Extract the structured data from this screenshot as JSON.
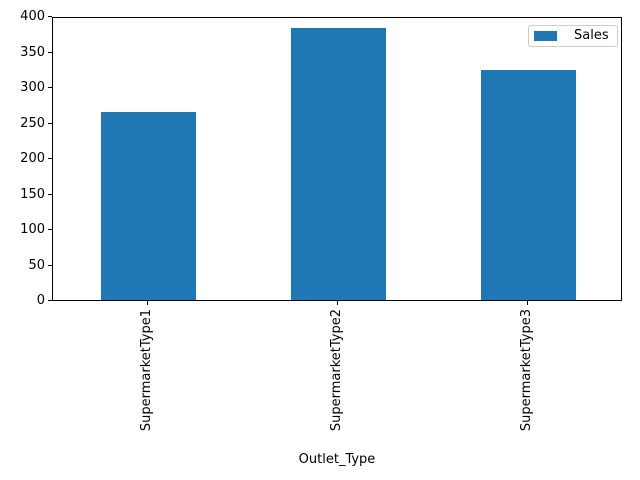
{
  "chart_data": {
    "type": "bar",
    "categories": [
      "SupermarketType1",
      "SupermarketType2",
      "SupermarketType3"
    ],
    "series": [
      {
        "name": "Sales",
        "values": [
          265,
          383,
          324
        ],
        "color": "#1f77b4"
      }
    ],
    "title": "",
    "xlabel": "Outlet_Type",
    "ylabel": "",
    "ylim": [
      0,
      400
    ],
    "yticks": [
      0,
      50,
      100,
      150,
      200,
      250,
      300,
      350,
      400
    ],
    "x_tick_rotation": 90,
    "bar_relative_width": 0.5,
    "grid": false,
    "legend": {
      "position": "upper right",
      "entries": [
        {
          "label": "Sales",
          "color": "#1f77b4"
        }
      ]
    },
    "colors": {
      "bar": "#1f77b4",
      "spine": "#000000",
      "legend_border": "#cccccc",
      "background": "#ffffff",
      "text": "#000000"
    }
  }
}
